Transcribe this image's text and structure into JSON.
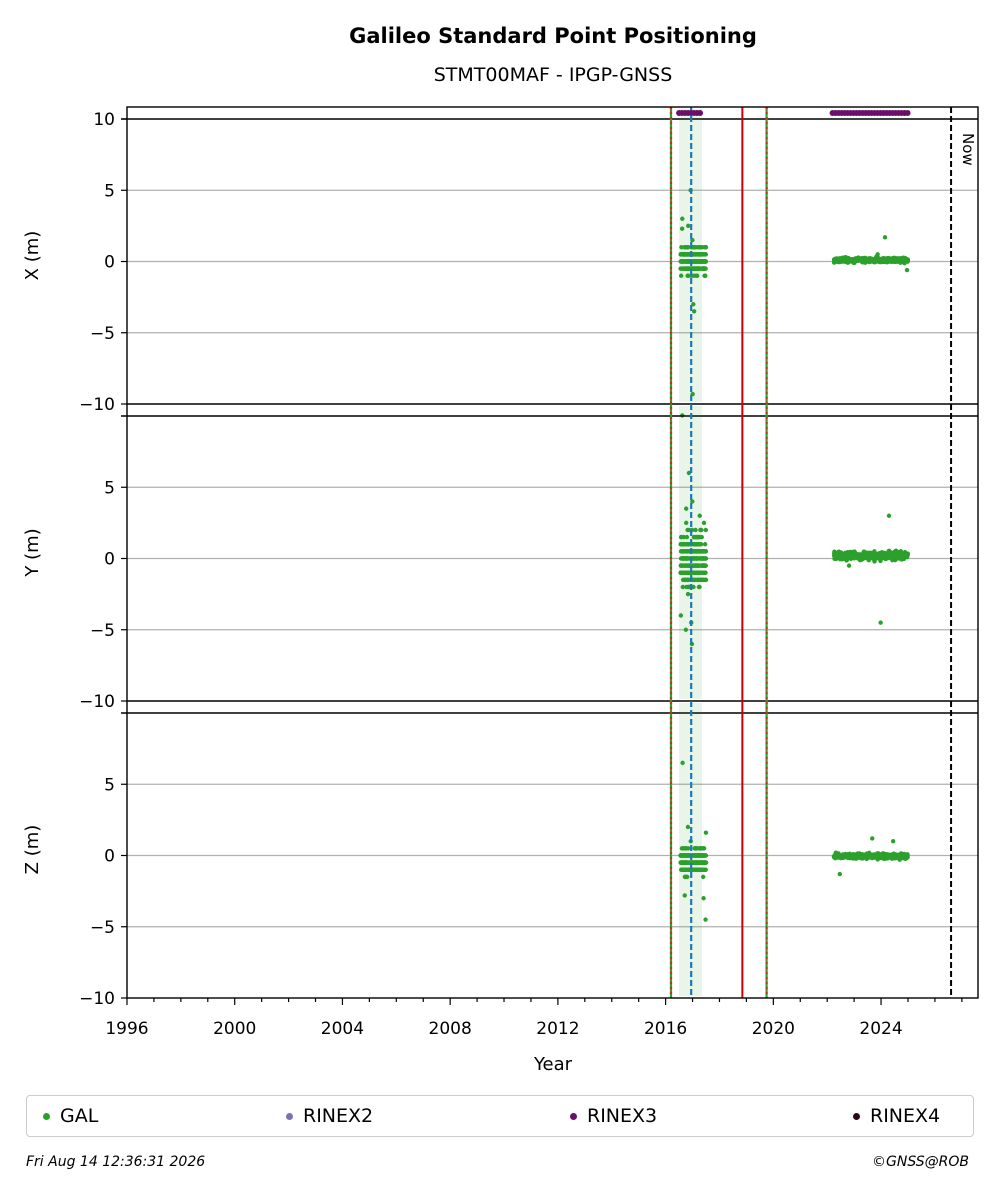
{
  "chart_data": {
    "type": "scatter",
    "title": "Galileo Standard Point Positioning",
    "subtitle": "STMT00MAF - IPGP-GNSS",
    "xlabel": "Year",
    "x_ticks": [
      "1996",
      "2000",
      "2004",
      "2008",
      "2012",
      "2016",
      "2020",
      "2024"
    ],
    "xlim": [
      1996,
      2027.6
    ],
    "panels": [
      {
        "ylabel": "X (m)",
        "ylim": [
          -10,
          10
        ],
        "yticks": [
          "10",
          "5",
          "0",
          "−5",
          "−10"
        ]
      },
      {
        "ylabel": "Y (m)",
        "ylim": [
          -10,
          10
        ],
        "yticks": [
          "5",
          "0",
          "−5",
          "−10"
        ]
      },
      {
        "ylabel": "Z (m)",
        "ylim": [
          -10,
          10
        ],
        "yticks": [
          "5",
          "0",
          "−5",
          "−10"
        ]
      }
    ],
    "grid": true,
    "now_label": "Now",
    "vertical_lines": [
      {
        "year": 2016.2,
        "style": "green-red-dotted"
      },
      {
        "year": 2016.95,
        "style": "blue-dashed"
      },
      {
        "year": 2018.85,
        "style": "red-solid"
      },
      {
        "year": 2019.75,
        "style": "green-red-dotted"
      },
      {
        "year": 2026.6,
        "style": "black-dashed"
      }
    ],
    "rinex3_availability": [
      [
        2016.5,
        2017.35
      ],
      [
        2022.2,
        2025.05
      ]
    ],
    "series": [
      {
        "name": "GAL",
        "color": "#2ca02c",
        "segments": [
          {
            "start": 2016.55,
            "end": 2017.5,
            "x": {
              "mean": 0.1,
              "spread": 0.7,
              "outliers": [
                -9.3,
                -10.8,
                5.0,
                3.0,
                2.3,
                -3.5,
                -3.0,
                2.5
              ]
            },
            "y": {
              "mean": 0.0,
              "spread": 1.4,
              "outliers": [
                6.0,
                4.0,
                3.5,
                -6.0,
                -5.0,
                -4.5,
                2.5,
                -4.0
              ]
            },
            "z": {
              "mean": -0.4,
              "spread": 0.6,
              "outliers": [
                6.5,
                -4.5,
                -3.0,
                2.0,
                1.6,
                -2.8
              ]
            }
          },
          {
            "start": 2022.25,
            "end": 2025.0,
            "x": {
              "mean": 0.1,
              "spread": 0.12,
              "outliers": [
                1.7,
                -0.6,
                0.5
              ]
            },
            "y": {
              "mean": 0.2,
              "spread": 0.2,
              "outliers": [
                3.0,
                -4.5,
                -0.5
              ]
            },
            "z": {
              "mean": -0.05,
              "spread": 0.12,
              "outliers": [
                1.2,
                -1.3,
                1.0
              ]
            }
          }
        ]
      },
      {
        "name": "RINEX2",
        "color": "#7f6fb0"
      },
      {
        "name": "RINEX3",
        "color": "#6a0f6a"
      },
      {
        "name": "RINEX4",
        "color": "#2a0a1a"
      }
    ]
  },
  "legend": [
    {
      "label": "GAL",
      "color": "#2ca02c"
    },
    {
      "label": "RINEX2",
      "color": "#7f6fb0"
    },
    {
      "label": "RINEX3",
      "color": "#6a0f6a"
    },
    {
      "label": "RINEX4",
      "color": "#2a0a1a"
    }
  ],
  "footer": {
    "timestamp": "Fri Aug 14 12:36:31 2026",
    "copyright": "©GNSS@ROB"
  }
}
